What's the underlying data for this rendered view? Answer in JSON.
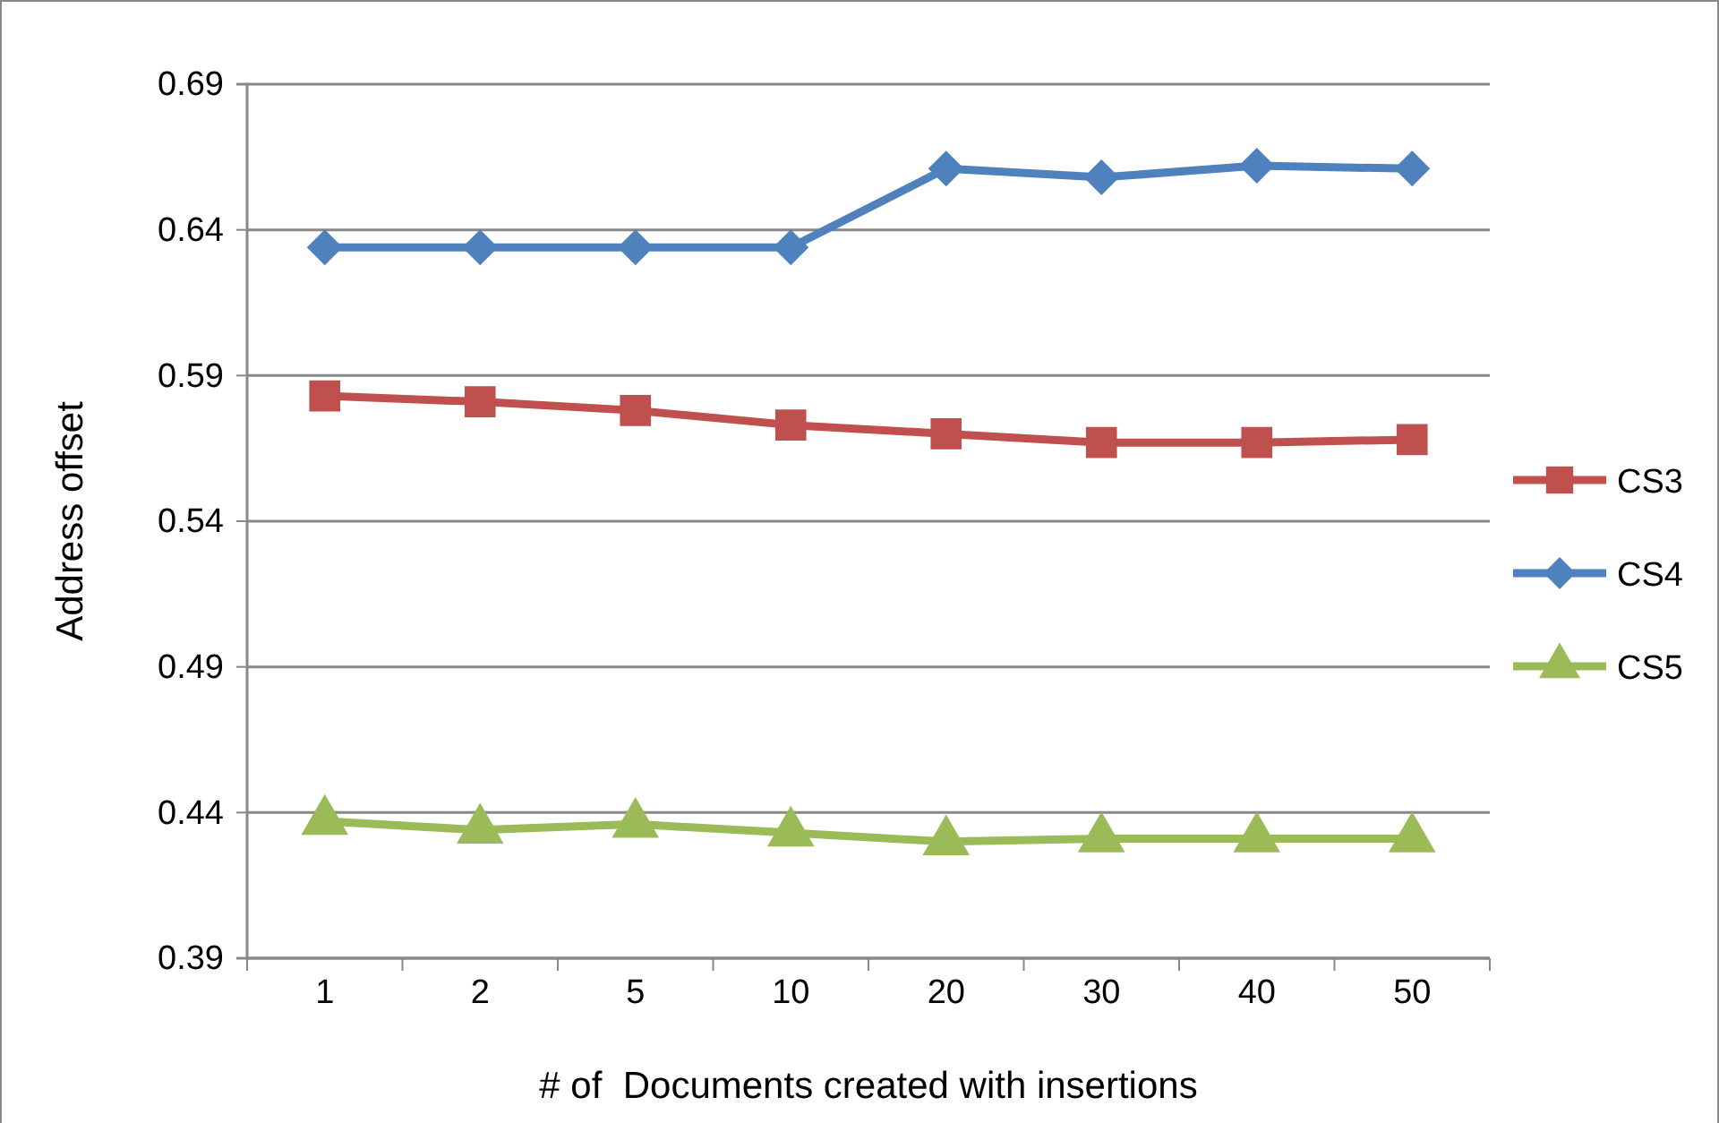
{
  "chart_data": {
    "type": "line",
    "xlabel": "# of  Documents created with insertions",
    "ylabel": "Address offset",
    "categories": [
      "1",
      "2",
      "5",
      "10",
      "20",
      "30",
      "40",
      "50"
    ],
    "series": [
      {
        "name": "CS3",
        "color": "#c0504d",
        "marker": "square",
        "values": [
          0.583,
          0.581,
          0.578,
          0.573,
          0.57,
          0.567,
          0.567,
          0.568
        ]
      },
      {
        "name": "CS4",
        "color": "#4f81bd",
        "marker": "diamond",
        "values": [
          0.634,
          0.634,
          0.634,
          0.634,
          0.661,
          0.658,
          0.662,
          0.661
        ]
      },
      {
        "name": "CS5",
        "color": "#9bbb59",
        "marker": "triangle",
        "values": [
          0.437,
          0.434,
          0.436,
          0.433,
          0.43,
          0.431,
          0.431,
          0.431
        ]
      }
    ],
    "ylim": [
      0.39,
      0.69
    ],
    "yticks": [
      0.39,
      0.44,
      0.49,
      0.54,
      0.59,
      0.64,
      0.69
    ],
    "grid": "y",
    "legend": "right",
    "line_style": "solid"
  }
}
